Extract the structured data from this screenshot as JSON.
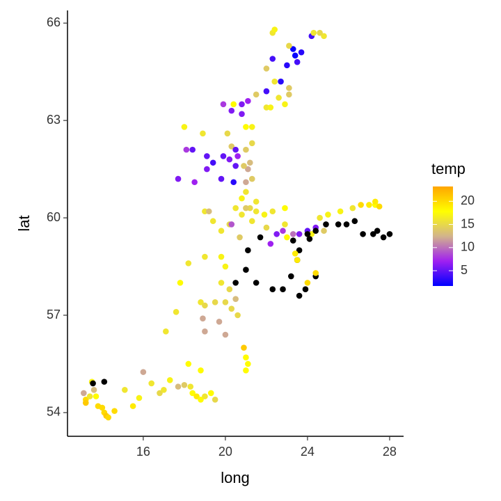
{
  "chart_data": {
    "type": "scatter",
    "x_label": "long",
    "y_label": "lat",
    "legend_title": "temp",
    "xlim": [
      12.31,
      28.68
    ],
    "ylim": [
      53.27,
      66.39
    ],
    "xticks": [
      16,
      20,
      24,
      28
    ],
    "yticks": [
      54,
      57,
      60,
      63,
      66
    ],
    "color_lim": [
      1.7,
      23.2
    ],
    "color_ticks": [
      5,
      10,
      15,
      20
    ],
    "colors": [
      "#0000ff",
      "#a020f0",
      "#d2b48c",
      "#ffff00",
      "#ffa500"
    ],
    "na_color": "#000000",
    "x": [
      13.1,
      13.2,
      13.2,
      13.4,
      13.5,
      13.55,
      13.6,
      13.7,
      13.8,
      14.0,
      14.1,
      14.2,
      14.3,
      14.6,
      14.1,
      15.1,
      15.5,
      15.8,
      16.0,
      16.4,
      16.8,
      17.0,
      17.3,
      17.7,
      18.0,
      18.3,
      18.4,
      18.6,
      18.8,
      19.0,
      19.3,
      19.5,
      18.2,
      18.8,
      17.1,
      17.6,
      17.8,
      18.2,
      18.8,
      19.0,
      19.5,
      20.0,
      20.5,
      20.2,
      19.8,
      20.0,
      18.9,
      19.7,
      19.0,
      20.0,
      20.9,
      21.0,
      21.1,
      21.0,
      20.3,
      20.6,
      19.0,
      19.8,
      20.5,
      21.0,
      21.1,
      20.7,
      21.7,
      19.8,
      20.2,
      19.4,
      19.0,
      19.2,
      20.3,
      20.5,
      20.8,
      21.0,
      21.2,
      21.5,
      21.9,
      22.3,
      22.9,
      21.0,
      21.3,
      21.1,
      20.4,
      19.8,
      19.1,
      18.5,
      17.7,
      18.1,
      18.4,
      19.4,
      19.9,
      20.2,
      20.3,
      20.5,
      21.2,
      20.9,
      21.0,
      21.3,
      21.0,
      21.3,
      19.9,
      20.3,
      20.4,
      20.8,
      20.8,
      21.1,
      21.5,
      22.0,
      22.2,
      22.6,
      22.9,
      23.1,
      23.1,
      22.0,
      22.0,
      22.4,
      22.7,
      22.3,
      23.0,
      23.5,
      23.4,
      23.3,
      23.7,
      23.1,
      22.3,
      22.4,
      24.2,
      24.3,
      24.8,
      24.6,
      18.0,
      18.9,
      19.1,
      20.1,
      20.5,
      20.6,
      21.5,
      21.0,
      20.8,
      21.3,
      22.0,
      22.2,
      22.5,
      22.8,
      23.3,
      23.6,
      24.0,
      24.4,
      24.2,
      24.8,
      24.6,
      25.0,
      25.6,
      26.2,
      26.6,
      27.0,
      27.3,
      27.5,
      27.3,
      25.9,
      26.3,
      25.5,
      24.9,
      24.4,
      24.0,
      23.3,
      23.6,
      24.1,
      26.7,
      27.2,
      27.4,
      27.7,
      28.0,
      23.5,
      23.2,
      22.8,
      22.3,
      21.5,
      23.6,
      23.9,
      24.4,
      23.4,
      23.5,
      24.0,
      24.4,
      23.0,
      22.9
    ],
    "y": [
      54.6,
      54.4,
      54.3,
      54.5,
      54.95,
      54.9,
      54.7,
      54.5,
      54.2,
      54.15,
      54.0,
      53.9,
      53.85,
      54.05,
      54.95,
      54.7,
      54.2,
      54.45,
      55.25,
      54.9,
      54.6,
      54.7,
      55.0,
      54.8,
      54.85,
      54.8,
      54.6,
      54.5,
      54.4,
      54.5,
      54.6,
      54.4,
      55.5,
      55.3,
      56.5,
      57.1,
      58.0,
      58.6,
      57.4,
      57.3,
      57.4,
      57.4,
      57.5,
      57.8,
      58.0,
      58.5,
      56.9,
      56.8,
      56.5,
      56.4,
      56.0,
      55.7,
      55.5,
      55.3,
      57.2,
      57.0,
      58.8,
      58.8,
      58.0,
      58.4,
      59.0,
      59.4,
      59.4,
      59.6,
      59.8,
      59.9,
      60.2,
      60.2,
      59.8,
      60.3,
      60.6,
      60.8,
      60.3,
      60.2,
      60.1,
      60.2,
      60.3,
      61.1,
      61.2,
      61.5,
      61.1,
      61.2,
      61.5,
      61.1,
      61.2,
      62.1,
      62.1,
      61.7,
      61.9,
      61.8,
      62.2,
      61.6,
      61.7,
      61.6,
      62.1,
      62.3,
      62.8,
      62.8,
      63.5,
      63.3,
      63.5,
      63.5,
      63.2,
      63.6,
      63.8,
      63.4,
      63.4,
      63.7,
      63.5,
      63.8,
      64.0,
      63.9,
      64.6,
      64.2,
      64.2,
      64.9,
      64.7,
      64.8,
      65.0,
      65.2,
      65.1,
      65.3,
      65.7,
      65.8,
      65.6,
      65.7,
      65.6,
      65.7,
      62.8,
      62.6,
      61.9,
      62.6,
      62.1,
      61.9,
      60.5,
      60.3,
      60.1,
      59.9,
      59.7,
      59.2,
      59.5,
      59.6,
      59.5,
      59.5,
      59.6,
      59.7,
      59.5,
      59.6,
      60.0,
      60.1,
      60.2,
      60.3,
      60.4,
      60.4,
      60.4,
      60.35,
      60.5,
      59.8,
      59.9,
      59.8,
      59.8,
      59.6,
      59.5,
      59.3,
      59.0,
      59.35,
      59.5,
      59.5,
      59.6,
      59.4,
      59.5,
      58.7,
      58.2,
      57.8,
      57.8,
      58.0,
      57.6,
      57.8,
      58.2,
      58.9,
      58.7,
      58.0,
      58.3,
      59.4,
      59.8
    ],
    "temp": [
      12,
      20,
      21,
      16,
      17,
      null,
      13,
      18,
      20,
      20,
      20,
      21,
      20,
      20,
      null,
      16,
      19,
      17,
      12,
      16,
      15,
      16,
      17,
      13,
      14,
      16,
      18,
      19,
      18,
      16,
      18,
      15,
      18,
      18,
      16,
      16,
      18,
      16,
      16,
      15,
      15,
      15,
      13,
      15,
      16,
      17,
      12,
      12,
      12,
      12,
      21,
      18,
      18,
      18,
      15,
      15,
      16,
      17,
      null,
      null,
      null,
      14,
      null,
      16,
      15,
      16,
      16,
      13,
      9,
      16,
      17,
      16,
      15,
      16,
      17,
      16,
      18,
      12,
      14,
      12,
      3,
      5,
      6,
      7,
      6,
      8,
      5,
      4,
      5,
      6,
      14,
      5,
      13,
      14,
      14,
      15,
      18,
      17,
      8,
      6,
      18,
      6,
      6,
      7,
      14,
      16,
      17,
      16,
      17,
      14,
      14,
      4,
      14,
      16,
      3,
      4,
      3,
      4,
      2,
      2,
      3,
      15,
      16,
      17,
      4,
      16,
      16,
      15,
      17,
      16,
      5,
      15,
      5,
      7,
      16,
      14,
      16,
      16,
      15,
      7,
      6,
      8,
      10,
      6,
      5,
      6,
      17,
      14,
      16,
      17,
      17,
      16,
      20,
      19,
      18,
      20,
      19,
      null,
      null,
      null,
      null,
      null,
      null,
      null,
      null,
      null,
      null,
      null,
      null,
      null,
      null,
      null,
      null,
      null,
      null,
      null,
      null,
      null,
      null,
      19,
      19,
      20,
      20,
      18,
      16
    ]
  }
}
